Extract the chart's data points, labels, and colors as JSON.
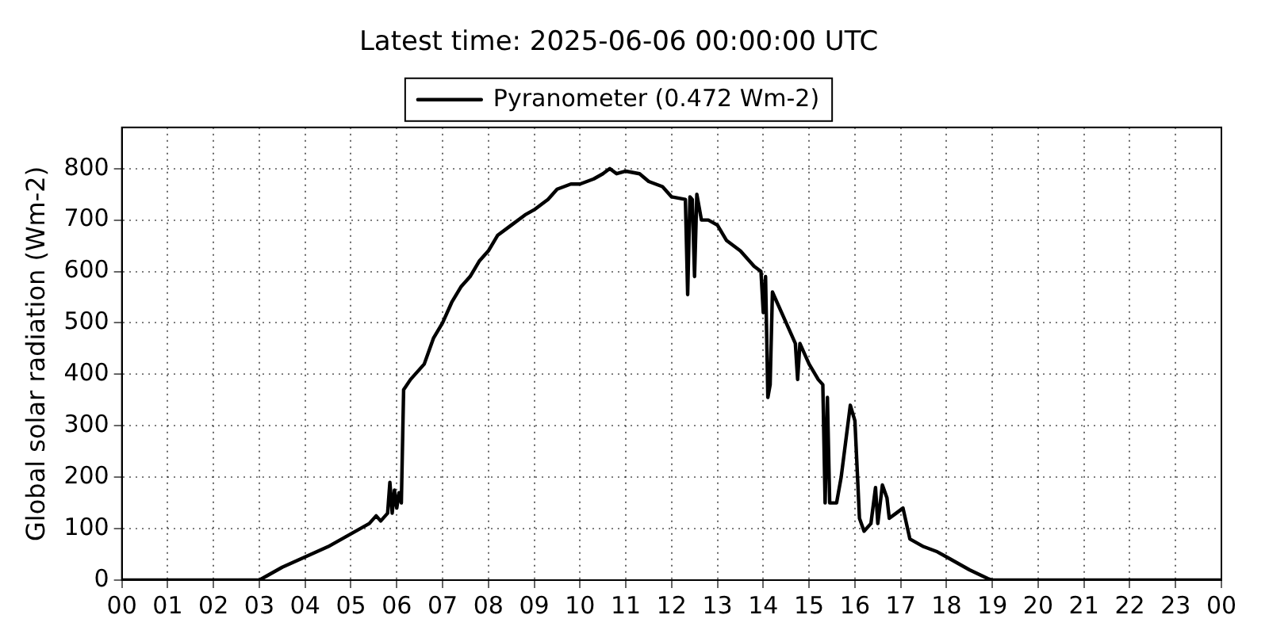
{
  "chart_data": {
    "type": "line",
    "title": "Latest time: 2025-06-06 00:00:00 UTC",
    "ylabel": "Global solar radiation (Wm-2)",
    "legend": "top",
    "grid": true,
    "marker": "none",
    "line_style": "solid",
    "xlim": [
      0,
      24
    ],
    "xticks": [
      {
        "value": 0,
        "label": "00"
      },
      {
        "value": 1,
        "label": "01"
      },
      {
        "value": 2,
        "label": "02"
      },
      {
        "value": 3,
        "label": "03"
      },
      {
        "value": 4,
        "label": "04"
      },
      {
        "value": 5,
        "label": "05"
      },
      {
        "value": 6,
        "label": "06"
      },
      {
        "value": 7,
        "label": "07"
      },
      {
        "value": 8,
        "label": "08"
      },
      {
        "value": 9,
        "label": "09"
      },
      {
        "value": 10,
        "label": "10"
      },
      {
        "value": 11,
        "label": "11"
      },
      {
        "value": 12,
        "label": "12"
      },
      {
        "value": 13,
        "label": "13"
      },
      {
        "value": 14,
        "label": "14"
      },
      {
        "value": 15,
        "label": "15"
      },
      {
        "value": 16,
        "label": "16"
      },
      {
        "value": 17,
        "label": "17"
      },
      {
        "value": 18,
        "label": "18"
      },
      {
        "value": 19,
        "label": "19"
      },
      {
        "value": 20,
        "label": "20"
      },
      {
        "value": 21,
        "label": "21"
      },
      {
        "value": 22,
        "label": "22"
      },
      {
        "value": 23,
        "label": "23"
      },
      {
        "value": 24,
        "label": "00"
      }
    ],
    "ylim": [
      0,
      880
    ],
    "yticks": [
      0,
      100,
      200,
      300,
      400,
      500,
      600,
      700,
      800
    ],
    "series": [
      {
        "name": "Pyranometer (0.472 Wm-2)",
        "color": "#000000",
        "x": [
          0,
          3.0,
          3.1,
          3.5,
          4.0,
          4.5,
          5.0,
          5.4,
          5.55,
          5.65,
          5.8,
          5.85,
          5.9,
          5.95,
          6.0,
          6.05,
          6.1,
          6.15,
          6.3,
          6.5,
          6.6,
          6.8,
          7.0,
          7.2,
          7.4,
          7.6,
          7.8,
          8.0,
          8.2,
          8.5,
          8.8,
          9.0,
          9.3,
          9.5,
          9.8,
          10.0,
          10.3,
          10.5,
          10.65,
          10.8,
          11.0,
          11.3,
          11.5,
          11.8,
          12.0,
          12.3,
          12.35,
          12.4,
          12.45,
          12.5,
          12.55,
          12.65,
          12.8,
          13.0,
          13.2,
          13.5,
          13.8,
          13.95,
          14.0,
          14.05,
          14.1,
          14.15,
          14.2,
          14.3,
          14.5,
          14.7,
          14.75,
          14.8,
          15.0,
          15.2,
          15.3,
          15.35,
          15.4,
          15.45,
          15.6,
          15.7,
          15.9,
          16.0,
          16.1,
          16.2,
          16.35,
          16.45,
          16.5,
          16.6,
          16.7,
          16.75,
          16.9,
          17.05,
          17.2,
          17.5,
          17.8,
          18.0,
          18.5,
          18.9,
          19.0,
          24
        ],
        "values": [
          0,
          0,
          5,
          25,
          45,
          65,
          90,
          110,
          125,
          115,
          130,
          190,
          130,
          175,
          140,
          170,
          150,
          370,
          390,
          410,
          420,
          470,
          500,
          540,
          570,
          590,
          620,
          640,
          670,
          690,
          710,
          720,
          740,
          760,
          770,
          770,
          780,
          790,
          800,
          790,
          795,
          790,
          775,
          765,
          745,
          740,
          555,
          745,
          740,
          590,
          750,
          700,
          700,
          690,
          660,
          640,
          610,
          600,
          520,
          590,
          355,
          380,
          560,
          540,
          500,
          460,
          390,
          460,
          420,
          390,
          380,
          150,
          355,
          150,
          150,
          200,
          340,
          310,
          120,
          95,
          110,
          180,
          110,
          185,
          160,
          120,
          130,
          140,
          80,
          65,
          55,
          45,
          20,
          3,
          0,
          0
        ]
      }
    ]
  }
}
